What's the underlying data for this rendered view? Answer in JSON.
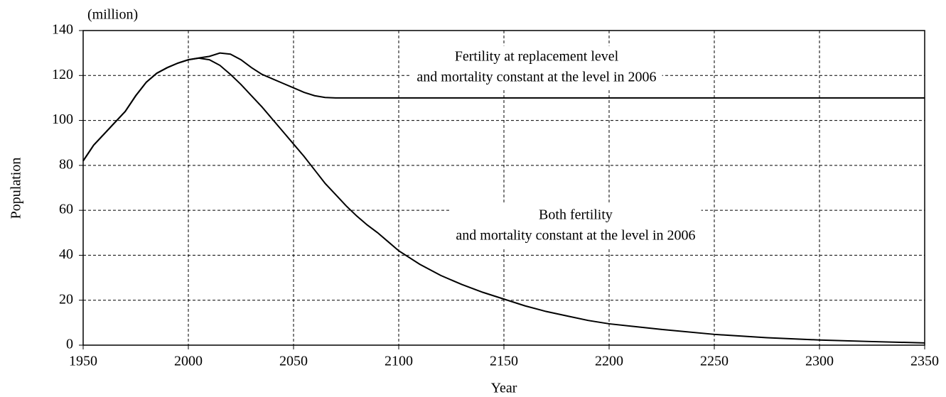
{
  "chart_data": {
    "type": "line",
    "y_unit": "(million)",
    "xlabel": "Year",
    "ylabel": "Population",
    "x": [
      1950,
      1955,
      1960,
      1965,
      1970,
      1975,
      1980,
      1985,
      1990,
      1995,
      2000,
      2005,
      2010,
      2015,
      2020,
      2025,
      2030,
      2035,
      2040,
      2045,
      2050,
      2055,
      2060,
      2065,
      2070,
      2075,
      2080,
      2085,
      2090,
      2095,
      2100,
      2110,
      2120,
      2130,
      2140,
      2150,
      2160,
      2170,
      2180,
      2190,
      2200,
      2225,
      2250,
      2275,
      2300,
      2325,
      2350
    ],
    "series": [
      {
        "name": "Both fertility and mortality constant at the level in 2006",
        "color": "#000000",
        "values": [
          82,
          89,
          94,
          99,
          104,
          111,
          117,
          121,
          123.5,
          125.5,
          127,
          127.7,
          127,
          124.5,
          120.5,
          116,
          111,
          106,
          100.5,
          95,
          89.5,
          84,
          78,
          72,
          67,
          62,
          57.5,
          53.5,
          50,
          46,
          42,
          36,
          31,
          27,
          23.5,
          20.5,
          17.5,
          15,
          13,
          11,
          9.5,
          7,
          4.8,
          3.3,
          2.3,
          1.6,
          1
        ]
      },
      {
        "name": "Fertility at replacement level and mortality constant at the level in 2006",
        "color": "#000000",
        "values": [
          82,
          89,
          94,
          99,
          104,
          111,
          117,
          121,
          123.5,
          125.5,
          127,
          127.8,
          128.5,
          130,
          129.5,
          127,
          123.5,
          120.5,
          118.5,
          116.5,
          114.5,
          112.5,
          111,
          110.2,
          110,
          110,
          110,
          110,
          110,
          110,
          110,
          110,
          110,
          110,
          110,
          110,
          110,
          110,
          110,
          110,
          110,
          110,
          110,
          110,
          110,
          110,
          110
        ]
      }
    ],
    "annotations": [
      {
        "lines": [
          "Fertility at replacement level",
          "and mortality constant at the level in 2006"
        ]
      },
      {
        "lines": [
          "Both fertility",
          "and mortality constant at the level in 2006"
        ]
      }
    ],
    "xlim": [
      1950,
      2350
    ],
    "xticks": [
      1950,
      2000,
      2050,
      2100,
      2150,
      2200,
      2250,
      2300,
      2350
    ],
    "ylim": [
      0,
      140
    ],
    "yticks": [
      0,
      20,
      40,
      60,
      80,
      100,
      120,
      140
    ],
    "grid": true
  }
}
